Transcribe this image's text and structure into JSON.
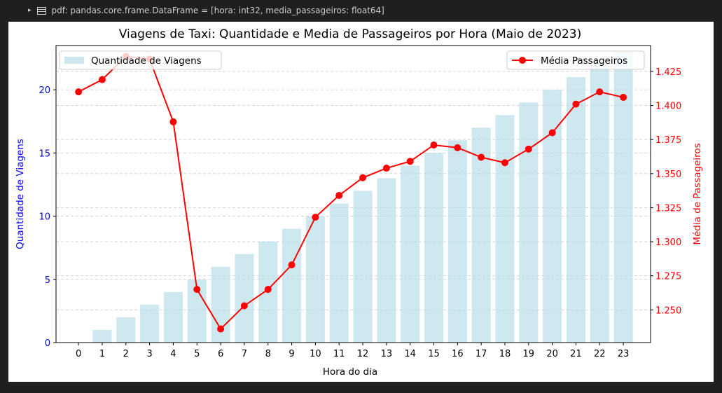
{
  "cell": {
    "chevron": "▸",
    "label": "pdf:  pandas.core.frame.DataFrame = [hora: int32, media_passageiros: float64]"
  },
  "colors": {
    "bars": "#add8e6",
    "line": "#ff0000",
    "left_axis_text": "#0000ff",
    "right_axis_text": "#ff0000",
    "background": "#1f1f1f"
  },
  "chart_data": {
    "type": "bar+line",
    "title": "Viagens de Taxi: Quantidade e Media de Passageiros por Hora (Maio de 2023)",
    "xlabel": "Hora do dia",
    "ylabel_left": "Quantidade de Viagens",
    "ylabel_right": "Média de Passageiros",
    "categories": [
      0,
      1,
      2,
      3,
      4,
      5,
      6,
      7,
      8,
      9,
      10,
      11,
      12,
      13,
      14,
      15,
      16,
      17,
      18,
      19,
      20,
      21,
      22,
      23
    ],
    "x_ticks": [
      "0",
      "1",
      "2",
      "3",
      "4",
      "5",
      "6",
      "7",
      "8",
      "9",
      "10",
      "11",
      "12",
      "13",
      "14",
      "15",
      "16",
      "17",
      "18",
      "19",
      "20",
      "21",
      "22",
      "23"
    ],
    "ylim_left": [
      0,
      23.5
    ],
    "yticks_left": [
      "0",
      "5",
      "10",
      "15",
      "20"
    ],
    "ylim_right": [
      1.226,
      1.444
    ],
    "yticks_right": [
      "1.250",
      "1.275",
      "1.300",
      "1.325",
      "1.350",
      "1.375",
      "1.400",
      "1.425"
    ],
    "grid": "horizontal dashed",
    "series": [
      {
        "name": "Quantidade de Viagens",
        "axis": "left",
        "kind": "bar",
        "values": [
          0,
          1,
          2,
          3,
          4,
          5,
          6,
          7,
          8,
          9,
          10,
          11,
          12,
          13,
          14,
          15,
          16,
          17,
          18,
          19,
          20,
          21,
          22,
          23
        ]
      },
      {
        "name": "Média Passageiros",
        "axis": "right",
        "kind": "line",
        "values": [
          1.41,
          1.419,
          1.436,
          1.434,
          1.388,
          1.265,
          1.236,
          1.253,
          1.265,
          1.283,
          1.318,
          1.334,
          1.347,
          1.354,
          1.359,
          1.371,
          1.369,
          1.362,
          1.358,
          1.368,
          1.38,
          1.401,
          1.41,
          1.406
        ]
      }
    ],
    "legend_left": {
      "label": "Quantidade de Viagens",
      "placement": "upper-left"
    },
    "legend_right": {
      "label": "Média Passageiros",
      "placement": "upper-right"
    }
  }
}
